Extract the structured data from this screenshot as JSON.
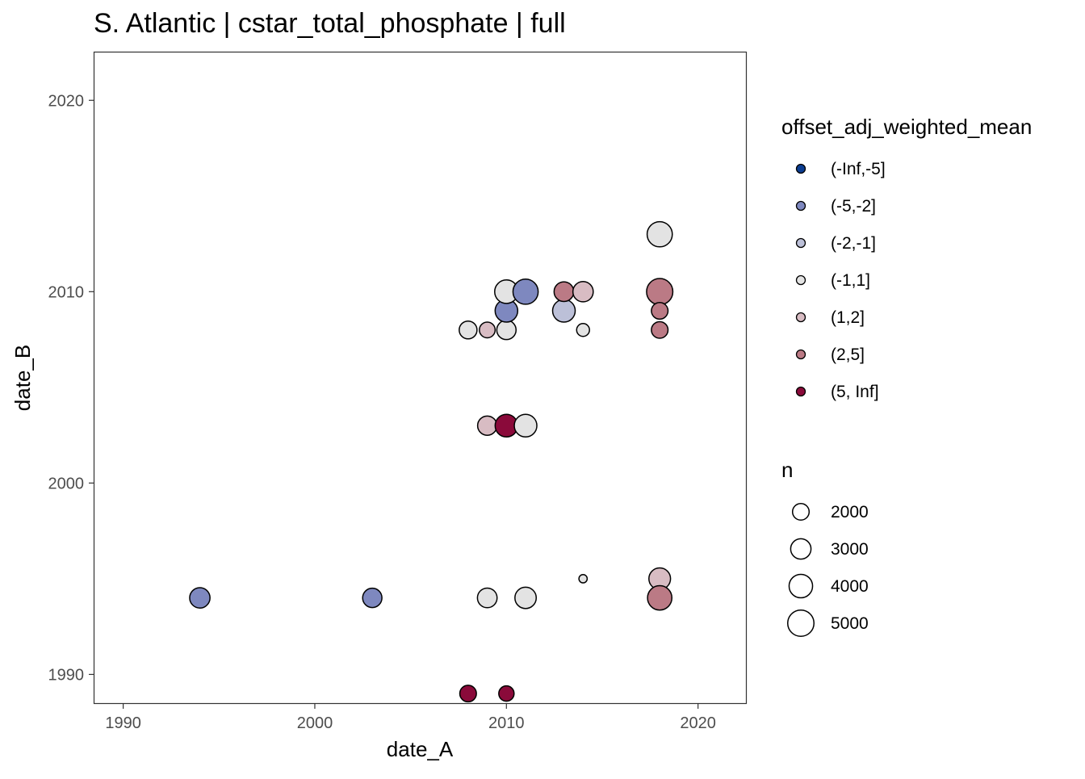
{
  "chart_data": {
    "type": "scatter",
    "title": "S. Atlantic | cstar_total_phosphate | full",
    "xlabel": "date_A",
    "ylabel": "date_B",
    "xlim": [
      1988.5,
      2022.5
    ],
    "ylim": [
      1988.5,
      2022.5
    ],
    "x_ticks": [
      1990,
      2000,
      2010,
      2020
    ],
    "y_ticks": [
      1990,
      2000,
      2010,
      2020
    ],
    "x_tick_labels": [
      "1990",
      "2000",
      "2010",
      "2020"
    ],
    "y_tick_labels": [
      "1990",
      "2000",
      "2010",
      "2020"
    ],
    "grid": false,
    "legend_position": "right",
    "color_legend": {
      "title": "offset_adj_weighted_mean",
      "entries": [
        {
          "label": "(-Inf,-5]",
          "color": "#0b3d91"
        },
        {
          "label": "(-5,-2]",
          "color": "#7e88bf"
        },
        {
          "label": "(-2,-1]",
          "color": "#bcc0d8"
        },
        {
          "label": "(-1,1]",
          "color": "#e3e3e3"
        },
        {
          "label": "(1,2]",
          "color": "#d8bcc3"
        },
        {
          "label": "(2,5]",
          "color": "#bb7a85"
        },
        {
          "label": "(5, Inf]",
          "color": "#8a0a3a"
        }
      ]
    },
    "size_legend": {
      "title": "n",
      "entries": [
        {
          "label": "2000",
          "value": 2000
        },
        {
          "label": "3000",
          "value": 3000
        },
        {
          "label": "4000",
          "value": 4000
        },
        {
          "label": "5000",
          "value": 5000
        }
      ]
    },
    "points": [
      {
        "x": 1994,
        "y": 1994,
        "n": 3000,
        "bin": "(-5,-2]"
      },
      {
        "x": 2003,
        "y": 1994,
        "n": 2700,
        "bin": "(-5,-2]"
      },
      {
        "x": 2008,
        "y": 1989,
        "n": 2000,
        "bin": "(5, Inf]"
      },
      {
        "x": 2010,
        "y": 1989,
        "n": 1700,
        "bin": "(5, Inf]"
      },
      {
        "x": 2009,
        "y": 1994,
        "n": 2800,
        "bin": "(-1,1]"
      },
      {
        "x": 2011,
        "y": 1994,
        "n": 3300,
        "bin": "(-1,1]"
      },
      {
        "x": 2014,
        "y": 1995,
        "n": 500,
        "bin": "(-1,1]"
      },
      {
        "x": 2018,
        "y": 1995,
        "n": 3400,
        "bin": "(1,2]"
      },
      {
        "x": 2018,
        "y": 1994,
        "n": 4300,
        "bin": "(2,5]"
      },
      {
        "x": 2009,
        "y": 2003,
        "n": 2700,
        "bin": "(1,2]"
      },
      {
        "x": 2010,
        "y": 2003,
        "n": 3700,
        "bin": "(5, Inf]"
      },
      {
        "x": 2011,
        "y": 2003,
        "n": 3700,
        "bin": "(-1,1]"
      },
      {
        "x": 2008,
        "y": 2008,
        "n": 2300,
        "bin": "(-1,1]"
      },
      {
        "x": 2009,
        "y": 2008,
        "n": 1800,
        "bin": "(1,2]"
      },
      {
        "x": 2010,
        "y": 2008,
        "n": 2700,
        "bin": "(-1,1]"
      },
      {
        "x": 2010,
        "y": 2009,
        "n": 3700,
        "bin": "(-5,-2]"
      },
      {
        "x": 2010,
        "y": 2010,
        "n": 4000,
        "bin": "(-1,1]"
      },
      {
        "x": 2011,
        "y": 2010,
        "n": 4600,
        "bin": "(-5,-2]"
      },
      {
        "x": 2013,
        "y": 2009,
        "n": 3700,
        "bin": "(-2,-1]"
      },
      {
        "x": 2013,
        "y": 2010,
        "n": 2800,
        "bin": "(2,5]"
      },
      {
        "x": 2014,
        "y": 2010,
        "n": 3000,
        "bin": "(1,2]"
      },
      {
        "x": 2014,
        "y": 2008,
        "n": 1200,
        "bin": "(-1,1]"
      },
      {
        "x": 2018,
        "y": 2013,
        "n": 4600,
        "bin": "(-1,1]"
      },
      {
        "x": 2018,
        "y": 2010,
        "n": 5000,
        "bin": "(2,5]"
      },
      {
        "x": 2018,
        "y": 2009,
        "n": 2000,
        "bin": "(2,5]"
      },
      {
        "x": 2018,
        "y": 2008,
        "n": 2000,
        "bin": "(2,5]"
      }
    ]
  }
}
